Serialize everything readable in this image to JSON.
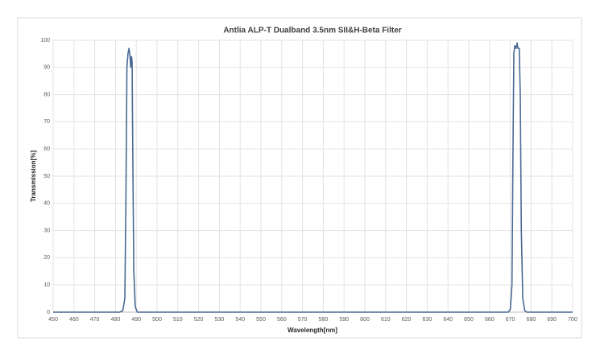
{
  "chart_data": {
    "type": "line",
    "title": "Antlia ALP-T Dualband 3.5nm SII&H-Beta Filter",
    "x_label": "Wavelength[nm]",
    "y_label": "Transmission[%]",
    "x": [
      450,
      482,
      483.5,
      484.5,
      485,
      485.5,
      486,
      486.5,
      487,
      487.3,
      487.7,
      488,
      488.3,
      488.8,
      489.5,
      490.5,
      669,
      670,
      670.8,
      671.3,
      671.7,
      672.2,
      672.8,
      673.3,
      673.7,
      674.3,
      674.8,
      675.3,
      676,
      677,
      678,
      700
    ],
    "values": [
      0,
      0,
      0.5,
      5,
      40,
      90,
      95,
      97,
      94,
      90,
      94,
      92,
      60,
      15,
      2,
      0,
      0,
      1,
      10,
      60,
      95,
      98,
      97,
      99,
      97,
      97,
      80,
      30,
      5,
      0.5,
      0,
      0
    ],
    "color": "#4a6a94",
    "xlim": [
      450,
      700
    ],
    "xticks": [
      450,
      460,
      470,
      480,
      490,
      500,
      510,
      520,
      530,
      540,
      550,
      560,
      570,
      580,
      590,
      600,
      610,
      620,
      630,
      640,
      650,
      660,
      670,
      680,
      690,
      700
    ],
    "ylim": [
      0,
      100
    ],
    "yticks": [
      0,
      10,
      20,
      30,
      40,
      50,
      60,
      70,
      80,
      90,
      100
    ],
    "grid": true
  }
}
